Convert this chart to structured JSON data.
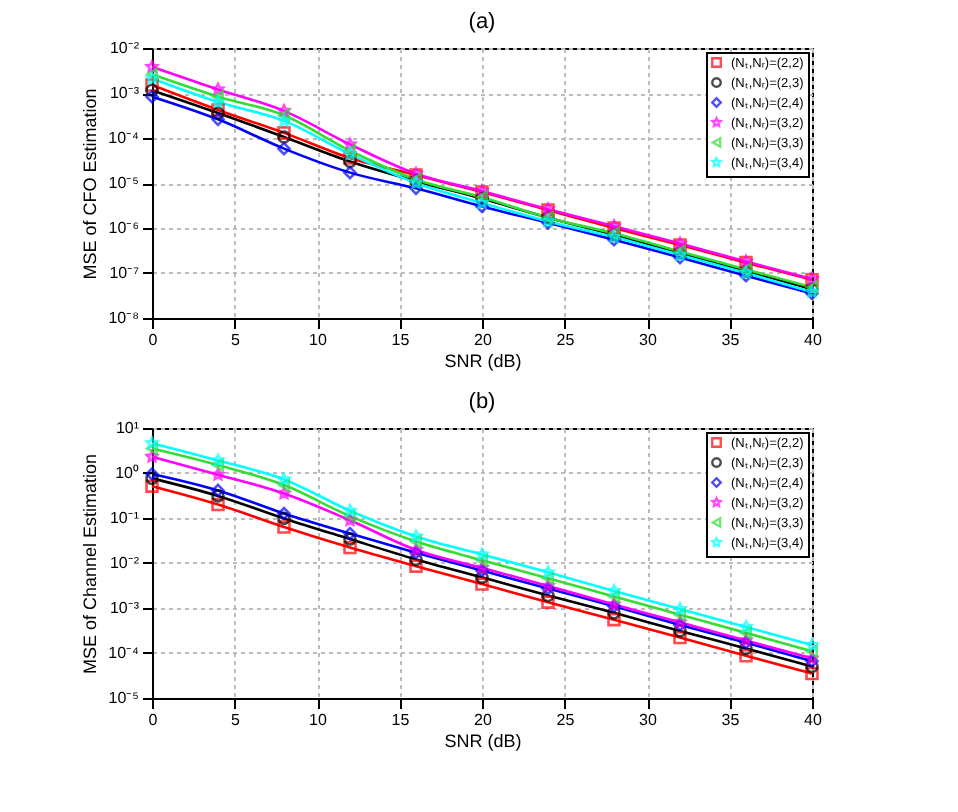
{
  "chart_data": [
    {
      "type": "line",
      "title": "(a)",
      "xlabel": "SNR (dB)",
      "ylabel": "MSE of CFO Estimation",
      "log": "y",
      "grid": true,
      "legend": "top right",
      "x": [
        0,
        4,
        8,
        12,
        16,
        20,
        24,
        28,
        32,
        36,
        40
      ],
      "xlim": [
        0,
        40
      ],
      "xticks": [
        0,
        5,
        10,
        15,
        20,
        25,
        30,
        35,
        40
      ],
      "ylim": [
        1e-08,
        0.01
      ],
      "yticks": [
        {
          "value": 1e-08,
          "label": "10⁻⁸"
        },
        {
          "value": 1e-07,
          "label": "10⁻⁷"
        },
        {
          "value": 1e-06,
          "label": "10⁻⁶"
        },
        {
          "value": 1e-05,
          "label": "10⁻⁵"
        },
        {
          "value": 0.0001,
          "label": "10⁻⁴"
        },
        {
          "value": 0.001,
          "label": "10⁻³"
        },
        {
          "value": 0.01,
          "label": "10⁻²"
        }
      ],
      "series": [
        {
          "name": "(Nₜ,Nᵣ)=(2,2)",
          "color": "#ff0000",
          "marker": "square",
          "values": [
            0.0015,
            0.00042,
            0.00013,
            3.6e-05,
            1.5e-05,
            6.3e-06,
            2.5e-06,
            1e-06,
            4.2e-07,
            1.7e-07,
            7.1e-08
          ]
        },
        {
          "name": "(Nₜ,Nᵣ)=(2,3)",
          "color": "#000000",
          "marker": "circle",
          "values": [
            0.00115,
            0.00036,
            0.000105,
            3e-05,
            1.1e-05,
            4.5e-06,
            1.7e-06,
            7.1e-07,
            2.8e-07,
            1.1e-07,
            4.4e-08
          ]
        },
        {
          "name": "(Nₜ,Nᵣ)=(2,4)",
          "color": "#0000ff",
          "marker": "diamond",
          "values": [
            0.00083,
            0.00026,
            5.8e-05,
            1.7e-05,
            7.6e-06,
            3e-06,
            1.3e-06,
            5.5e-07,
            2.2e-07,
            8.7e-08,
            3.5e-08
          ]
        },
        {
          "name": "(Nₜ,Nᵣ)=(3,2)",
          "color": "#ff00ff",
          "marker": "star",
          "values": [
            0.0038,
            0.0012,
            0.0004,
            7.2e-05,
            1.6e-05,
            6.6e-06,
            2.6e-06,
            1.1e-06,
            4.5e-07,
            1.8e-07,
            7.4e-08
          ]
        },
        {
          "name": "(Nₜ,Nᵣ)=(3,3)",
          "color": "#33dd33",
          "marker": "triangle",
          "values": [
            0.0026,
            0.00083,
            0.00032,
            5.2e-05,
            1.2e-05,
            4.8e-06,
            1.7e-06,
            7.6e-07,
            3e-07,
            1.2e-07,
            4.8e-08
          ]
        },
        {
          "name": "(Nₜ,Nᵣ)=(3,4)",
          "color": "#00ffff",
          "marker": "star",
          "values": [
            0.0021,
            0.00063,
            0.00024,
            4.4e-05,
            1e-05,
            3.6e-06,
            1.4e-06,
            6.3e-07,
            2.5e-07,
            1e-07,
            3.8e-08
          ]
        }
      ]
    },
    {
      "type": "line",
      "title": "(b)",
      "xlabel": "SNR (dB)",
      "ylabel": "MSE of Channel Estimation",
      "log": "y",
      "grid": true,
      "legend": "top right",
      "x": [
        0,
        4,
        8,
        12,
        16,
        20,
        24,
        28,
        32,
        36,
        40
      ],
      "xlim": [
        0,
        40
      ],
      "xticks": [
        0,
        5,
        10,
        15,
        20,
        25,
        30,
        35,
        40
      ],
      "ylim": [
        1e-05,
        10
      ],
      "yticks": [
        {
          "value": 1e-05,
          "label": "10⁻⁵"
        },
        {
          "value": 0.0001,
          "label": "10⁻⁴"
        },
        {
          "value": 0.001,
          "label": "10⁻³"
        },
        {
          "value": 0.01,
          "label": "10⁻²"
        },
        {
          "value": 0.1,
          "label": "10⁻¹"
        },
        {
          "value": 1,
          "label": "10⁰"
        },
        {
          "value": 10,
          "label": "10¹"
        }
      ],
      "series": [
        {
          "name": "(Nₜ,Nᵣ)=(2,2)",
          "color": "#ff0000",
          "marker": "square",
          "values": [
            0.51,
            0.2,
            0.063,
            0.022,
            0.0085,
            0.0034,
            0.00135,
            0.00055,
            0.00022,
            8.7e-05,
            3.5e-05
          ]
        },
        {
          "name": "(Nₜ,Nᵣ)=(2,3)",
          "color": "#000000",
          "marker": "circle",
          "values": [
            0.76,
            0.31,
            0.098,
            0.034,
            0.012,
            0.0048,
            0.0019,
            0.00078,
            0.00031,
            0.000126,
            5e-05
          ]
        },
        {
          "name": "(Nₜ,Nᵣ)=(2,4)",
          "color": "#0000ff",
          "marker": "diamond",
          "values": [
            0.95,
            0.41,
            0.126,
            0.045,
            0.017,
            0.0068,
            0.0027,
            0.0011,
            0.00042,
            0.00017,
            6.6e-05
          ]
        },
        {
          "name": "(Nₜ,Nᵣ)=(3,2)",
          "color": "#ff00ff",
          "marker": "star",
          "values": [
            2.3,
            0.92,
            0.35,
            0.089,
            0.0195,
            0.0078,
            0.0031,
            0.0012,
            0.00048,
            0.00019,
            7.6e-05
          ]
        },
        {
          "name": "(Nₜ,Nᵣ)=(3,3)",
          "color": "#33dd33",
          "marker": "triangle",
          "values": [
            3.5,
            1.5,
            0.54,
            0.11,
            0.03,
            0.0115,
            0.0046,
            0.0018,
            0.00071,
            0.00028,
            0.00011
          ]
        },
        {
          "name": "(Nₜ,Nᵣ)=(3,4)",
          "color": "#00ffff",
          "marker": "star",
          "values": [
            4.6,
            1.9,
            0.72,
            0.145,
            0.039,
            0.0155,
            0.0062,
            0.0024,
            0.00095,
            0.00038,
            0.00015
          ]
        }
      ]
    }
  ]
}
